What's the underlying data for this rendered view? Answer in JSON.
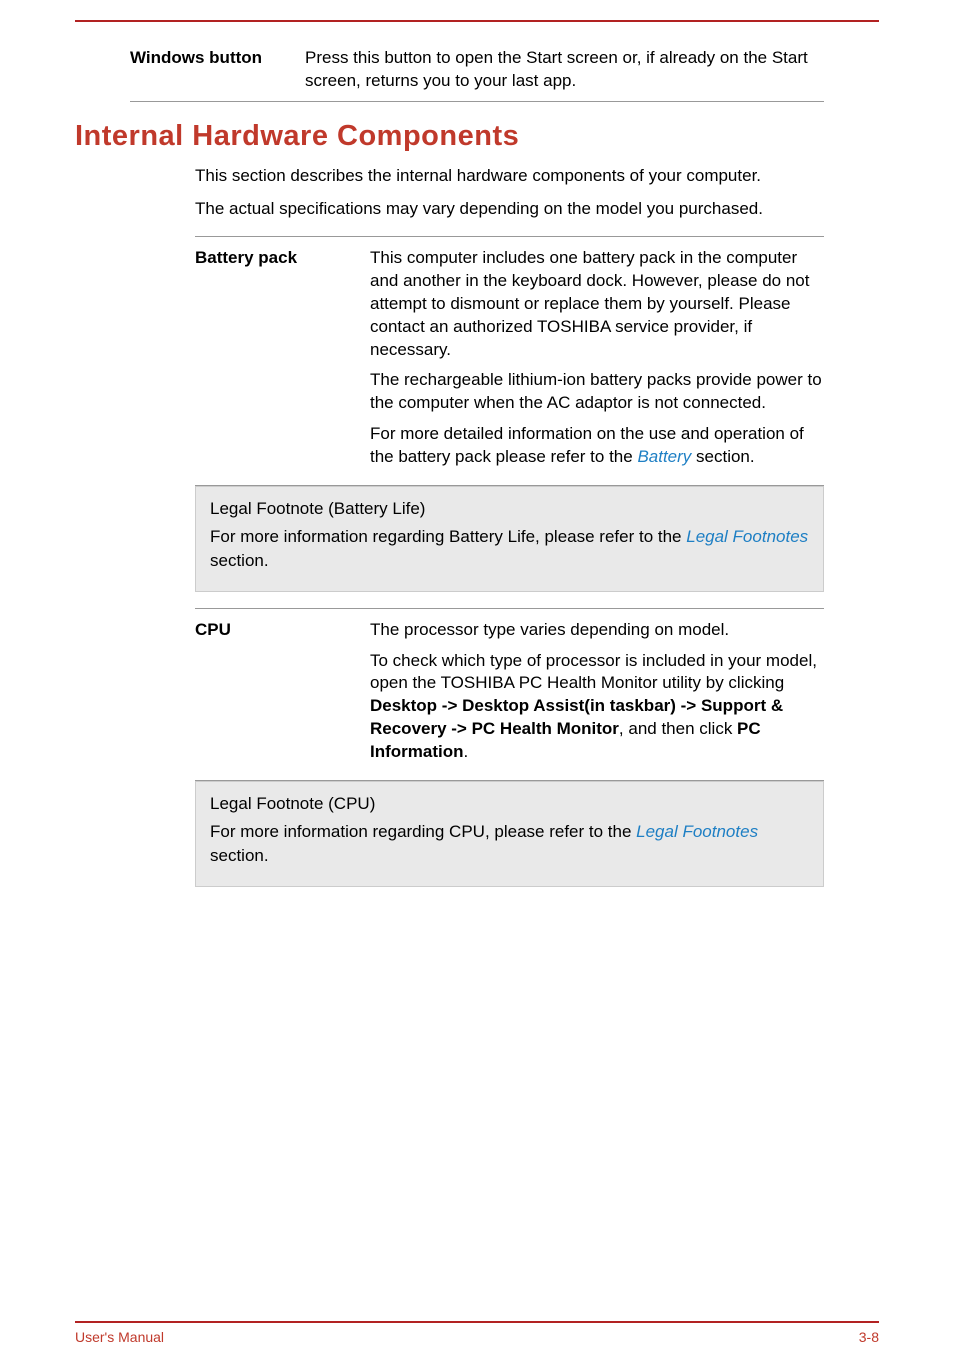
{
  "colors": {
    "accent_red": "#c0392b",
    "rule_red": "#b22222",
    "link_blue": "#1e7fc4",
    "text_black": "#000000",
    "note_bg": "#e9e9e9",
    "note_border": "#cccccc",
    "hr_gray": "#999999",
    "page_bg": "#ffffff"
  },
  "typography": {
    "body_fontsize": 17,
    "title_fontsize": 29,
    "title_fontweight": 900,
    "footer_fontsize": 14,
    "line_height": 1.35
  },
  "windows_button": {
    "term": "Windows button",
    "desc": "Press this button to open the Start screen or, if already on the Start screen, returns you to your last app."
  },
  "section_title": "Internal Hardware Components",
  "intro1": "This section describes the internal hardware components of your computer.",
  "intro2": "The actual specifications may vary depending on the model you purchased.",
  "battery": {
    "term": "Battery pack",
    "p1": "This computer includes one battery pack in the computer and another in the keyboard dock. However, please do not attempt to dismount or replace them by yourself. Please contact an authorized TOSHIBA service provider, if necessary.",
    "p2": "The rechargeable lithium-ion battery packs provide power to the computer when the AC adaptor is not connected.",
    "p3a": "For more detailed information on the use and operation of the battery pack please refer to the ",
    "p3_link": "Battery",
    "p3b": " section."
  },
  "battery_note": {
    "line1": "Legal Footnote (Battery Life)",
    "line2a": "For more information regarding Battery Life, please refer to the ",
    "line2_link": "Legal Footnotes",
    "line2b": " section."
  },
  "cpu": {
    "term": "CPU",
    "p1": "The processor type varies depending on model.",
    "p2a": "To check which type of processor is included in your model, open the TOSHIBA PC Health Monitor utility by clicking ",
    "p2_bold1": "Desktop -> Desktop Assist(in taskbar) -> Support & Recovery -> PC Health Monitor",
    "p2b": ", and then click ",
    "p2_bold2": "PC Information",
    "p2c": "."
  },
  "cpu_note": {
    "line1": "Legal Footnote (CPU)",
    "line2a": "For more information regarding CPU, please refer to the ",
    "line2_link": "Legal Footnotes",
    "line2b": " section."
  },
  "footer": {
    "left": "User's Manual",
    "right": "3-8"
  }
}
